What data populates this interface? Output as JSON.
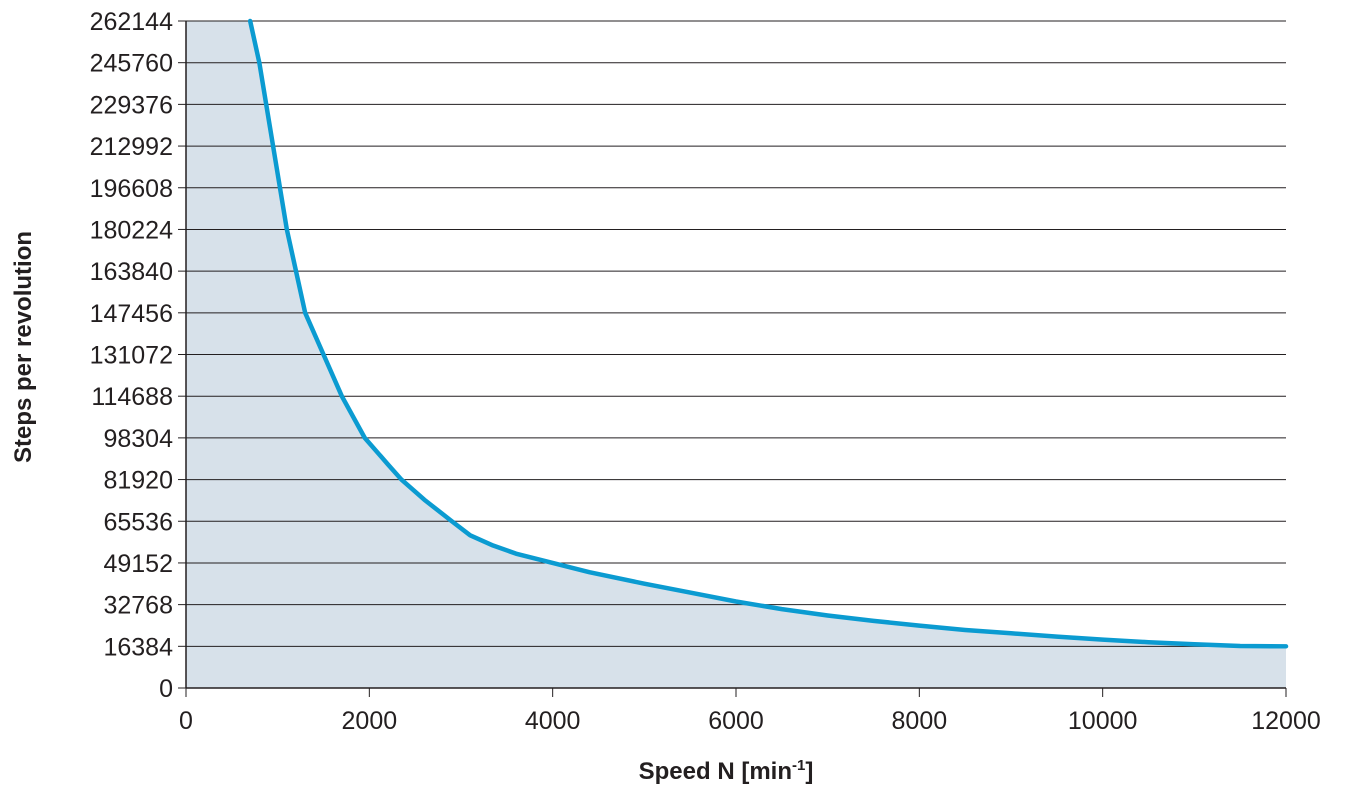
{
  "chart_data": {
    "type": "area",
    "xlabel_main": "Speed N [min",
    "xlabel_sup": "-1",
    "xlabel_close": "]",
    "ylabel": "Steps per revolution",
    "xlim": [
      0,
      12000
    ],
    "ylim": [
      0,
      262144
    ],
    "x_ticks": [
      "0",
      "2000",
      "4000",
      "6000",
      "8000",
      "10000",
      "12000"
    ],
    "y_ticks": [
      "0",
      "16384",
      "32768",
      "49152",
      "65536",
      "81920",
      "98304",
      "114688",
      "131072",
      "147456",
      "163840",
      "180224",
      "196608",
      "212992",
      "229376",
      "245760",
      "262144"
    ],
    "grid": "horizontal",
    "colors": {
      "line": "#0b9bd1",
      "fill": "#d7e1ea",
      "grid": "#231f20",
      "axis": "#231f20"
    },
    "series": [
      {
        "x": [
          700,
          800,
          950,
          1100,
          1200,
          1300,
          1500,
          1700,
          1950,
          2200,
          2350,
          2600,
          2900,
          3100,
          3350,
          3600,
          4000,
          4400,
          5000,
          5500,
          6000,
          6500,
          7000,
          7500,
          8000,
          8500,
          9000,
          9500,
          10000,
          10500,
          11000,
          11500,
          12000
        ],
        "y": [
          262144,
          245760,
          212992,
          180224,
          163840,
          147456,
          131072,
          114688,
          98304,
          88000,
          81920,
          74000,
          65536,
          60000,
          56000,
          52800,
          49152,
          45500,
          41000,
          37500,
          34000,
          31000,
          28500,
          26400,
          24500,
          22800,
          21500,
          20200,
          19000,
          18000,
          17200,
          16500,
          16384
        ]
      }
    ]
  }
}
